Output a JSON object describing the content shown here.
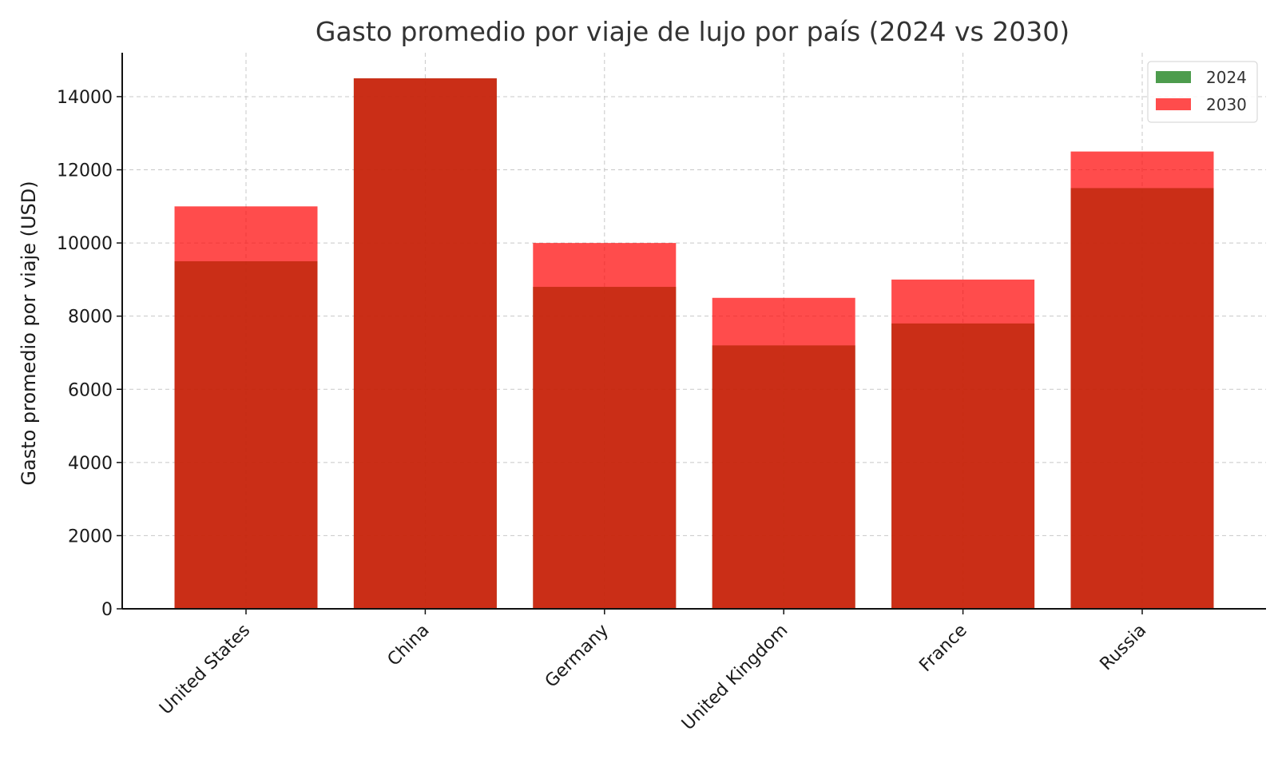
{
  "chart_data": {
    "type": "bar",
    "title": "Gasto promedio por viaje de lujo por país (2024 vs 2030)",
    "xlabel": "",
    "ylabel": "Gasto promedio por viaje (USD)",
    "categories": [
      "United States",
      "China",
      "Germany",
      "United Kingdom",
      "France",
      "Russia"
    ],
    "series": [
      {
        "name": "2024",
        "color": "#2e8b2e",
        "alpha": 0.85,
        "values": [
          9500,
          14500,
          8800,
          7200,
          7800,
          11500
        ]
      },
      {
        "name": "2030",
        "color": "#ff0000",
        "alpha": 0.7,
        "values": [
          11000,
          14500,
          10000,
          8500,
          9000,
          12500
        ]
      }
    ],
    "ylim": [
      0,
      15200
    ],
    "yticks": [
      0,
      2000,
      4000,
      6000,
      8000,
      10000,
      12000,
      14000
    ],
    "grid": true,
    "legend_position": "top-right",
    "overlaid_bars": true
  }
}
